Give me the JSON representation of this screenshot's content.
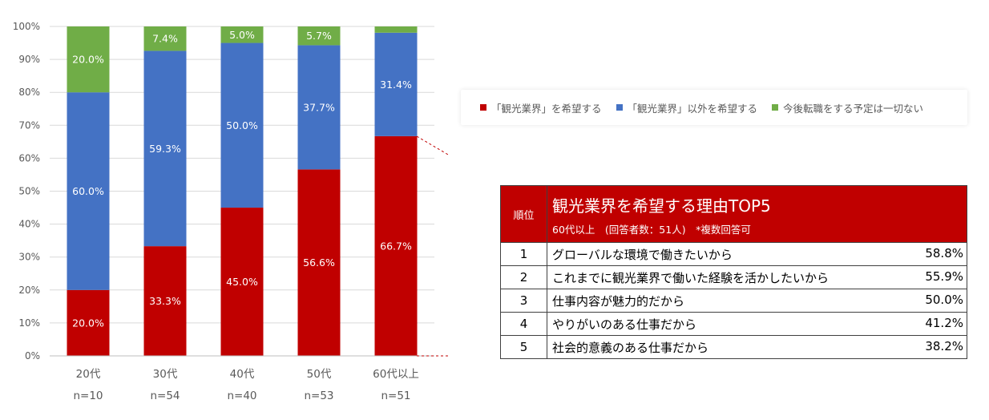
{
  "chart_data": {
    "type": "bar",
    "stacked": true,
    "percent": true,
    "categories": [
      "20代",
      "30代",
      "40代",
      "50代",
      "60代以上"
    ],
    "category_sublabels": [
      "n=10",
      "n=54",
      "n=40",
      "n=53",
      "n=51"
    ],
    "series": [
      {
        "name": "「観光業界」を希望する",
        "color": "#c00000",
        "values": [
          20.0,
          33.3,
          45.0,
          56.6,
          66.7
        ],
        "labels": [
          "20.0%",
          "33.3%",
          "45.0%",
          "56.6%",
          "66.7%"
        ]
      },
      {
        "name": "「観光業界」以外を希望する",
        "color": "#4472c4",
        "values": [
          60.0,
          59.3,
          50.0,
          37.7,
          31.4
        ],
        "labels": [
          "60.0%",
          "59.3%",
          "50.0%",
          "37.7%",
          "31.4%"
        ]
      },
      {
        "name": "今後転職をする予定は一切ない",
        "color": "#70ad47",
        "values": [
          20.0,
          7.4,
          5.0,
          5.7,
          1.9
        ],
        "labels": [
          "20.0%",
          "7.4%",
          "5.0%",
          "5.7%",
          ""
        ]
      }
    ],
    "ylim": [
      0,
      100
    ],
    "yticks": [
      "0%",
      "10%",
      "20%",
      "30%",
      "40%",
      "50%",
      "60%",
      "70%",
      "80%",
      "90%",
      "100%"
    ],
    "grid": true,
    "legend_position": "right"
  },
  "table": {
    "header_rank": "順位",
    "title": "観光業界を希望する理由TOP5",
    "subtitle": "60代以上　(回答者数：51人)　*複数回答可",
    "rows": [
      {
        "rank": "1",
        "reason": "グローバルな環境で働きたいから",
        "pct": "58.8%"
      },
      {
        "rank": "2",
        "reason": "これまでに観光業界で働いた経験を活かしたいから",
        "pct": "55.9%"
      },
      {
        "rank": "3",
        "reason": "仕事内容が魅力的だから",
        "pct": "50.0%"
      },
      {
        "rank": "4",
        "reason": "やりがいのある仕事だから",
        "pct": "41.2%"
      },
      {
        "rank": "5",
        "reason": "社会的意義のある仕事だから",
        "pct": "38.2%"
      }
    ]
  }
}
